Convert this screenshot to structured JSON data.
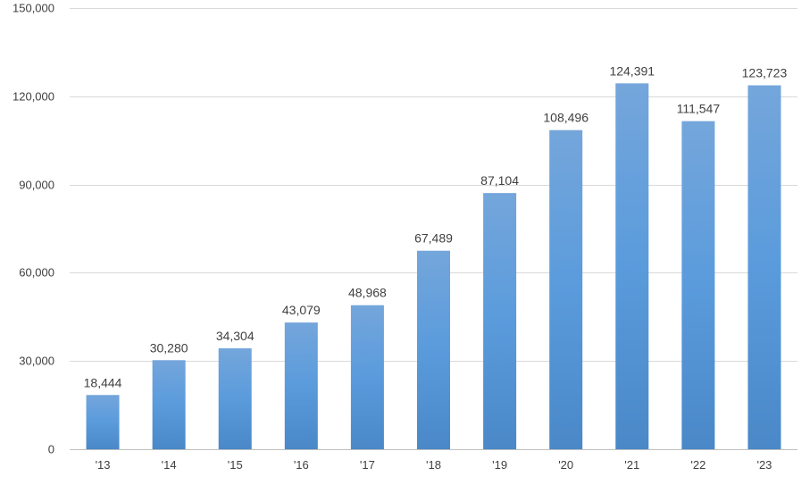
{
  "chart_data": {
    "type": "bar",
    "title": "",
    "xlabel": "",
    "ylabel": "",
    "categories": [
      "'13",
      "'14",
      "'15",
      "'16",
      "'17",
      "'18",
      "'19",
      "'20",
      "'21",
      "'22",
      "'23"
    ],
    "values": [
      18444,
      30280,
      34304,
      43079,
      48968,
      67489,
      87104,
      108496,
      124391,
      111547,
      123723
    ],
    "data_labels": [
      "18,444",
      "30,280",
      "34,304",
      "43,079",
      "48,968",
      "67,489",
      "87,104",
      "108,496",
      "124,391",
      "111,547",
      "123,723"
    ],
    "ylim": [
      0,
      150000
    ],
    "yticks": [
      0,
      30000,
      60000,
      90000,
      120000,
      150000
    ],
    "ytick_labels": [
      "0",
      "30,000",
      "60,000",
      "90,000",
      "120,000",
      "150,000"
    ],
    "grid": true,
    "legend": "none",
    "colors": {
      "bar_top": "#74a6db",
      "bar_mid": "#5a9bdc",
      "bar_bottom": "#4a88c8",
      "grid": "#d9d9d9",
      "text": "#404040"
    }
  }
}
